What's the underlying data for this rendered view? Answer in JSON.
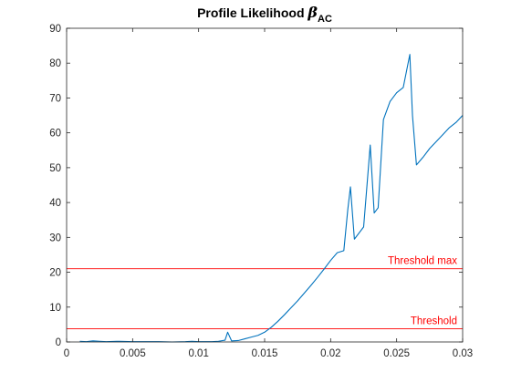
{
  "chart_data": {
    "type": "line",
    "title": {
      "text": "Profile Likelihood ",
      "symbol": "β",
      "subscript": "AC"
    },
    "xlabel": "",
    "ylabel": "",
    "xlim": [
      0,
      0.03
    ],
    "ylim": [
      0,
      90
    ],
    "xticks": [
      0,
      0.005,
      0.01,
      0.015,
      0.02,
      0.025,
      0.03
    ],
    "xtick_labels": [
      "0",
      "0.005",
      "0.01",
      "0.015",
      "0.02",
      "0.025",
      "0.03"
    ],
    "yticks": [
      0,
      10,
      20,
      30,
      40,
      50,
      60,
      70,
      80,
      90
    ],
    "ytick_labels": [
      "0",
      "10",
      "20",
      "30",
      "40",
      "50",
      "60",
      "70",
      "80",
      "90"
    ],
    "grid": false,
    "series": [
      {
        "color": "#0072BD",
        "x": [
          0.001,
          0.0015,
          0.002,
          0.0025,
          0.003,
          0.004,
          0.005,
          0.006,
          0.007,
          0.008,
          0.009,
          0.0095,
          0.01,
          0.0105,
          0.011,
          0.0115,
          0.012,
          0.0122,
          0.0125,
          0.013,
          0.0135,
          0.014,
          0.0145,
          0.015,
          0.0155,
          0.016,
          0.0165,
          0.017,
          0.0175,
          0.018,
          0.0185,
          0.019,
          0.0195,
          0.02,
          0.0205,
          0.021,
          0.0213,
          0.0215,
          0.0218,
          0.0225,
          0.023,
          0.0233,
          0.0236,
          0.024,
          0.0245,
          0.025,
          0.0255,
          0.026,
          0.0262,
          0.0265,
          0.027,
          0.0275,
          0.028,
          0.0285,
          0.029,
          0.0295,
          0.03
        ],
        "y": [
          0.2,
          0.1,
          0.3,
          0.2,
          0.1,
          0.2,
          0.1,
          0.1,
          0.1,
          0.0,
          0.1,
          0.2,
          0.1,
          0.1,
          0.1,
          0.2,
          0.5,
          2.8,
          0.3,
          0.4,
          0.9,
          1.4,
          1.9,
          2.8,
          4.2,
          5.9,
          7.8,
          9.8,
          11.8,
          14.0,
          16.2,
          18.5,
          20.9,
          23.4,
          25.6,
          26.2,
          38.0,
          44.5,
          29.5,
          33.0,
          56.5,
          37.0,
          38.5,
          63.8,
          69.0,
          71.5,
          73.0,
          82.5,
          65.0,
          50.8,
          53.0,
          55.5,
          57.5,
          59.5,
          61.5,
          63.0,
          65.0
        ]
      }
    ],
    "threshold_lines": [
      {
        "label": "Threshold max",
        "y": 21.0,
        "color": "#FF0000"
      },
      {
        "label": "Threshold",
        "y": 3.8,
        "color": "#FF0000"
      }
    ]
  }
}
